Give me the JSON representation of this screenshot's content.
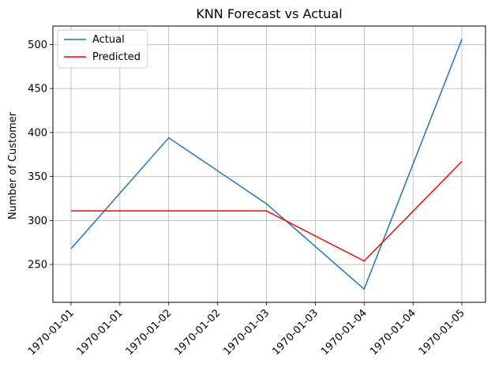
{
  "chart_data": {
    "type": "line",
    "title": "KNN Forecast vs Actual",
    "xlabel": "",
    "ylabel": "Number of Customer",
    "x_tick_labels": [
      "1970-01-01",
      "1970-01-01",
      "1970-01-02",
      "1970-01-02",
      "1970-01-03",
      "1970-01-03",
      "1970-01-04",
      "1970-01-04",
      "1970-01-05"
    ],
    "x_points": [
      "1970-01-01",
      "1970-01-02",
      "1970-01-03",
      "1970-01-04",
      "1970-01-05"
    ],
    "y_ticks": [
      250,
      300,
      350,
      400,
      450,
      500
    ],
    "ylim": [
      207,
      521
    ],
    "grid": true,
    "legend_position": "top-left",
    "series": [
      {
        "name": "Actual",
        "color": "#1f77b4",
        "values": [
          268,
          394,
          319,
          222,
          506
        ]
      },
      {
        "name": "Predicted",
        "color": "#ff0000",
        "values": [
          311,
          311,
          311,
          254,
          367
        ]
      }
    ]
  }
}
